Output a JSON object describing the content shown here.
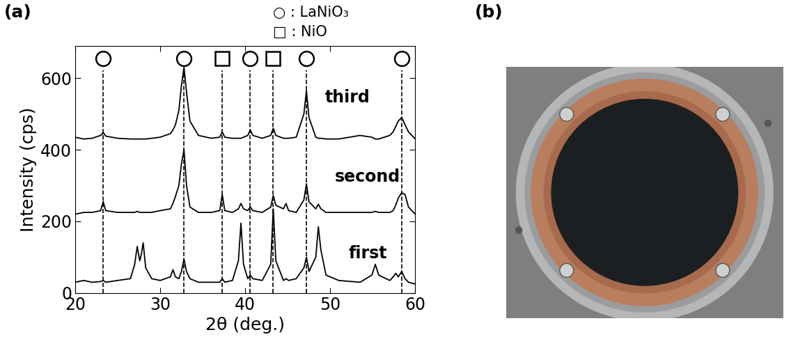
{
  "chart_data": {
    "type": "line",
    "panel_label": "(a)",
    "xlabel": "2θ (deg.)",
    "ylabel": "Intensity (cps)",
    "xlim": [
      20,
      60
    ],
    "xticks": [
      20,
      30,
      40,
      50,
      60
    ],
    "ylim": [
      0,
      690
    ],
    "yticks": [
      0,
      200,
      400,
      600
    ],
    "x": [
      20,
      21,
      22,
      23.0,
      23.3,
      23.6,
      25,
      26.5,
      27.0,
      27.3,
      27.6,
      27.8,
      28.0,
      28.3,
      29,
      30,
      31.2,
      31.5,
      31.8,
      32.2,
      32.5,
      32.8,
      33.1,
      33.5,
      34.5,
      36,
      37.0,
      37.3,
      37.6,
      38.5,
      39.2,
      39.5,
      39.8,
      40.3,
      40.6,
      40.9,
      42,
      43.0,
      43.3,
      43.6,
      44.5,
      44.8,
      45.1,
      46,
      46.9,
      47.2,
      47.5,
      48.3,
      48.6,
      48.9,
      49.5,
      51,
      53.5,
      54.9,
      55.3,
      55.7,
      57,
      57.4,
      57.7,
      58.0,
      58.4,
      58.8,
      59.2,
      60
    ],
    "series": [
      {
        "name": "first",
        "color": "#000000",
        "values": [
          30,
          35,
          30,
          32,
          35,
          30,
          35,
          40,
          80,
          130,
          90,
          110,
          140,
          70,
          40,
          35,
          45,
          65,
          45,
          40,
          60,
          95,
          60,
          40,
          30,
          30,
          30,
          40,
          30,
          35,
          90,
          195,
          80,
          40,
          50,
          40,
          35,
          80,
          235,
          90,
          35,
          40,
          35,
          40,
          70,
          100,
          60,
          100,
          185,
          120,
          50,
          35,
          30,
          50,
          80,
          50,
          35,
          45,
          55,
          45,
          60,
          40,
          30,
          25
        ]
      },
      {
        "name": "second",
        "color": "#000000",
        "values": [
          220,
          225,
          225,
          230,
          255,
          230,
          225,
          225,
          225,
          228,
          225,
          225,
          225,
          225,
          225,
          230,
          235,
          250,
          270,
          300,
          360,
          400,
          300,
          240,
          225,
          225,
          230,
          275,
          230,
          225,
          235,
          250,
          235,
          230,
          240,
          230,
          225,
          240,
          272,
          245,
          235,
          250,
          230,
          225,
          260,
          305,
          255,
          235,
          248,
          235,
          225,
          225,
          225,
          225,
          228,
          225,
          225,
          230,
          245,
          265,
          280,
          275,
          240,
          220
        ]
      },
      {
        "name": "third",
        "color": "#000000",
        "values": [
          435,
          430,
          432,
          440,
          448,
          438,
          432,
          430,
          430,
          430,
          430,
          430,
          430,
          430,
          432,
          435,
          445,
          455,
          470,
          510,
          580,
          630,
          560,
          480,
          440,
          432,
          435,
          450,
          435,
          432,
          432,
          432,
          435,
          440,
          455,
          440,
          432,
          440,
          460,
          440,
          432,
          432,
          432,
          435,
          500,
          565,
          490,
          435,
          432,
          432,
          430,
          430,
          440,
          435,
          430,
          430,
          440,
          450,
          465,
          480,
          490,
          470,
          450,
          430
        ]
      }
    ],
    "phases": [
      {
        "label": "○ : LaNiO₃",
        "marker": "circle",
        "positions": [
          23.3,
          32.8,
          40.6,
          47.2,
          58.4
        ]
      },
      {
        "label": "□ : NiO",
        "marker": "square",
        "positions": [
          37.3,
          43.3
        ]
      }
    ]
  },
  "photo": {
    "panel_label": "(b)"
  }
}
